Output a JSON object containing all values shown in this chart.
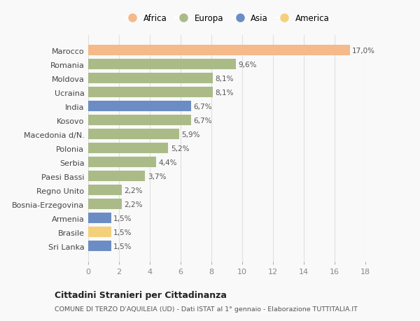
{
  "categories": [
    "Sri Lanka",
    "Brasile",
    "Armenia",
    "Bosnia-Erzegovina",
    "Regno Unito",
    "Paesi Bassi",
    "Serbia",
    "Polonia",
    "Macedonia d/N.",
    "Kosovo",
    "India",
    "Ucraina",
    "Moldova",
    "Romania",
    "Marocco"
  ],
  "values": [
    1.5,
    1.5,
    1.5,
    2.2,
    2.2,
    3.7,
    4.4,
    5.2,
    5.9,
    6.7,
    6.7,
    8.1,
    8.1,
    9.6,
    17.0
  ],
  "labels": [
    "1,5%",
    "1,5%",
    "1,5%",
    "2,2%",
    "2,2%",
    "3,7%",
    "4,4%",
    "5,2%",
    "5,9%",
    "6,7%",
    "6,7%",
    "8,1%",
    "8,1%",
    "9,6%",
    "17,0%"
  ],
  "colors": [
    "#6b8dc4",
    "#f5d07a",
    "#6b8dc4",
    "#aabb88",
    "#aabb88",
    "#aabb88",
    "#aabb88",
    "#aabb88",
    "#aabb88",
    "#aabb88",
    "#6b8dc4",
    "#aabb88",
    "#aabb88",
    "#aabb88",
    "#f5b98a"
  ],
  "legend": [
    {
      "label": "Africa",
      "color": "#f5b98a"
    },
    {
      "label": "Europa",
      "color": "#aabb88"
    },
    {
      "label": "Asia",
      "color": "#6b8dc4"
    },
    {
      "label": "America",
      "color": "#f5d07a"
    }
  ],
  "xlim": [
    0,
    18
  ],
  "xticks": [
    0,
    2,
    4,
    6,
    8,
    10,
    12,
    14,
    16,
    18
  ],
  "title": "Cittadini Stranieri per Cittadinanza",
  "subtitle": "COMUNE DI TERZO D'AQUILEIA (UD) - Dati ISTAT al 1° gennaio - Elaborazione TUTTITALIA.IT",
  "bg_color": "#f9f9f9",
  "grid_color": "#e0e0e0",
  "bar_height": 0.75
}
